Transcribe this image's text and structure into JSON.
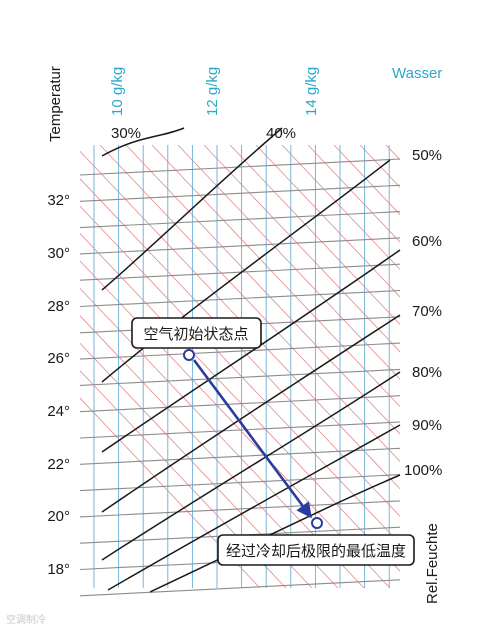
{
  "axis": {
    "temperature_label": "Temperatur",
    "humidity_label": "Wasser",
    "rel_humidity_label": "Rel.Feuchte"
  },
  "temperature_ticks": [
    {
      "value": 32,
      "label": "32°"
    },
    {
      "value": 30,
      "label": "30°"
    },
    {
      "value": 28,
      "label": "28°"
    },
    {
      "value": 26,
      "label": "26°"
    },
    {
      "value": 24,
      "label": "24°"
    },
    {
      "value": 22,
      "label": "22°"
    },
    {
      "value": 20,
      "label": "20°"
    },
    {
      "value": 18,
      "label": "18°"
    }
  ],
  "humidity_ticks": [
    {
      "label": "10 g/kg"
    },
    {
      "label": "12 g/kg"
    },
    {
      "label": "14 g/kg"
    }
  ],
  "rh_curves": [
    {
      "label": "30%"
    },
    {
      "label": "40%"
    },
    {
      "label": "50%"
    },
    {
      "label": "60%"
    },
    {
      "label": "70%"
    },
    {
      "label": "80%"
    },
    {
      "label": "90%"
    },
    {
      "label": "100%"
    }
  ],
  "process": {
    "start_label": "空气初始状态点",
    "end_label": "经过冷却后极限的最低温度",
    "arrow_color": "#2a3c9e"
  },
  "colors": {
    "blue_lines": "#6aaed6",
    "red_lines": "#e58a8a",
    "gray_lines": "#8c8c8c",
    "curves": "#1a1a1a",
    "accent_cyan": "#2aa9c9"
  },
  "watermark": "空调制冷"
}
